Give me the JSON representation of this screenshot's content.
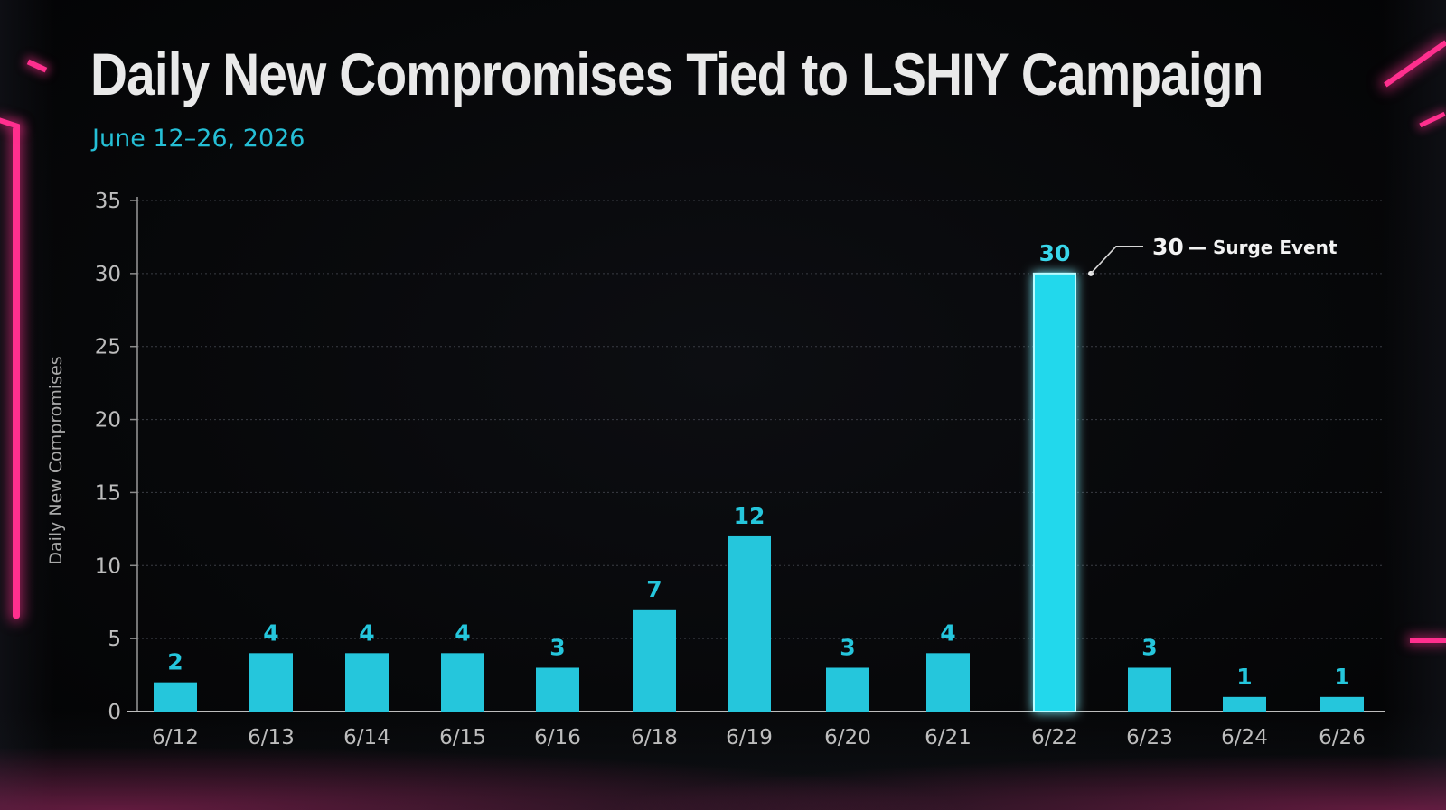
{
  "title": "Daily New Compromises Tied to LSHIY Campaign",
  "subtitle": "June 12–26, 2026",
  "colors": {
    "bar": "#25c6dc",
    "bar_highlight": "#3ee7f5",
    "accent_neon": "#ff2f8e",
    "text": "#e9e9e9",
    "axis_text": "#bdbdbd"
  },
  "chart_data": {
    "type": "bar",
    "title": "Daily New Compromises Tied to LSHIY Campaign",
    "subtitle": "June 12–26, 2026",
    "xlabel": "",
    "ylabel": "Daily New Compromises",
    "ylim": [
      0,
      35
    ],
    "yticks": [
      0,
      5,
      10,
      15,
      20,
      25,
      30,
      35
    ],
    "grid": true,
    "categories": [
      "6/12",
      "6/13",
      "6/14",
      "6/15",
      "6/16",
      "6/18",
      "6/19",
      "6/20",
      "6/21",
      "6/22",
      "6/23",
      "6/24",
      "6/26"
    ],
    "values": [
      2,
      4,
      4,
      4,
      3,
      7,
      12,
      3,
      4,
      30,
      3,
      1,
      1
    ],
    "data_labels": [
      "2",
      "4",
      "4",
      "4",
      "3",
      "7",
      "12",
      "3",
      "4",
      "30",
      "3",
      "1",
      "1"
    ],
    "highlight_index": 9,
    "annotation": {
      "category": "6/22",
      "value_text": "30",
      "text": "— Surge Event"
    }
  }
}
